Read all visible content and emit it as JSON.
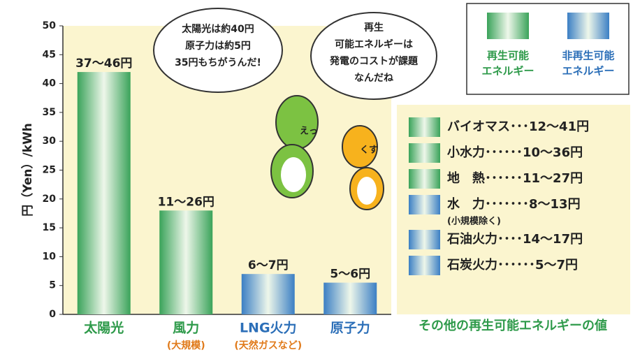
{
  "chart_data": {
    "type": "bar",
    "ylabel": "円（Yen）/kWh",
    "categories": [
      "太陽光",
      "風力",
      "LNG火力",
      "原子力"
    ],
    "category_notes": [
      null,
      "(大規模)",
      "(天然ガスなど)",
      null
    ],
    "values": [
      42,
      18,
      7,
      5.5
    ],
    "bar_labels": [
      "37～46円",
      "11～26円",
      "6～7円",
      "5～6円"
    ],
    "colors": [
      "#3aa35a",
      "#3aa35a",
      "#3b7fc4",
      "#3b7fc4"
    ],
    "ylim": [
      0,
      50
    ],
    "yticks": [
      0,
      5,
      10,
      15,
      20,
      25,
      30,
      35,
      40,
      45,
      50
    ],
    "legend": [
      {
        "lines": [
          "再生可能",
          "エネルギー"
        ],
        "color": "#3aa35a"
      },
      {
        "lines": [
          "非再生可能",
          "エネルギー"
        ],
        "color": "#3b7fc4"
      }
    ],
    "bubbles": [
      {
        "lines": [
          "太陽光は約40円",
          "原子力は約5円",
          "35円もちがうんだ!"
        ]
      },
      {
        "lines": [
          "再生",
          "可能エネルギーは",
          "発電のコストが課題",
          "なんだね"
        ]
      }
    ],
    "characters": [
      "えっ",
      "くす"
    ],
    "other": {
      "title": "その他の再生可能エネルギーの値",
      "items": [
        {
          "label": "バイオマス･･･12～41円",
          "note": null,
          "color": "#3aa35a"
        },
        {
          "label": "小水力･･････10～36円",
          "note": null,
          "color": "#3aa35a"
        },
        {
          "label": "地　熱･･････11～27円",
          "note": null,
          "color": "#3aa35a"
        },
        {
          "label": "水　力･･･････8～13円",
          "note": "(小規模除く)",
          "color": "#3b7fc4"
        },
        {
          "label": "石油火力････14～17円",
          "note": null,
          "color": "#3b7fc4"
        },
        {
          "label": "石炭火力･･････5～7円",
          "note": null,
          "color": "#3b7fc4"
        }
      ]
    }
  }
}
